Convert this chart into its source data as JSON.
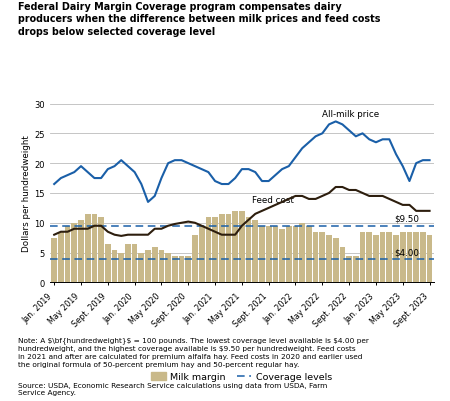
{
  "title": "Federal Dairy Margin Coverage program compensates dairy\nproducers when the difference between milk prices and feed costs\ndrops below selected coverage level",
  "ylabel": "Dollars per hundredweight",
  "coverage_low": 4.0,
  "coverage_high": 9.5,
  "bar_color": "#c9b98a",
  "feed_color": "#2d1e0e",
  "milk_color": "#1a5fa8",
  "coverage_color": "#1a5fa8",
  "tick_labels": [
    "Jan. 2019",
    "May 2019",
    "Sept. 2019",
    "Jan. 2020",
    "May 2020",
    "Sept. 2020",
    "Jan. 2021",
    "May 2021",
    "Sept. 2021",
    "Jan. 2022",
    "May 2022",
    "Sept. 2022",
    "Jan. 2023",
    "May 2023",
    "Sept. 2023"
  ],
  "milk_margin": [
    7.5,
    8.5,
    9.5,
    10.0,
    10.5,
    11.5,
    11.5,
    11.0,
    6.5,
    5.5,
    5.0,
    6.5,
    6.5,
    5.0,
    5.5,
    6.0,
    5.5,
    5.0,
    4.5,
    4.5,
    4.5,
    8.0,
    9.5,
    11.0,
    11.0,
    11.5,
    11.5,
    12.0,
    12.0,
    11.0,
    10.5,
    9.5,
    9.5,
    9.5,
    9.0,
    9.5,
    9.5,
    10.0,
    9.5,
    8.5,
    8.5,
    8.0,
    7.5,
    6.0,
    4.5,
    4.5,
    8.5,
    8.5,
    8.0,
    8.5,
    8.5,
    8.0,
    8.5,
    8.5,
    8.5,
    8.5,
    8.0
  ],
  "feed_cost": [
    8.0,
    8.5,
    8.5,
    9.0,
    9.0,
    9.0,
    9.5,
    9.5,
    8.5,
    8.0,
    7.8,
    8.0,
    8.0,
    8.0,
    8.0,
    9.0,
    9.0,
    9.5,
    9.8,
    10.0,
    10.2,
    10.0,
    9.5,
    9.0,
    8.5,
    8.0,
    8.0,
    8.0,
    9.5,
    10.5,
    11.5,
    12.0,
    12.5,
    13.0,
    13.5,
    14.0,
    14.5,
    14.5,
    14.0,
    14.0,
    14.5,
    15.0,
    16.0,
    16.0,
    15.5,
    15.5,
    15.0,
    14.5,
    14.5,
    14.5,
    14.0,
    13.5,
    13.0,
    13.0,
    12.0,
    12.0,
    12.0
  ],
  "all_milk_price": [
    16.5,
    17.5,
    18.0,
    18.5,
    19.5,
    18.5,
    17.5,
    17.5,
    19.0,
    19.5,
    20.5,
    19.5,
    18.5,
    16.5,
    13.5,
    14.5,
    17.5,
    20.0,
    20.5,
    20.5,
    20.0,
    19.5,
    19.0,
    18.5,
    17.0,
    16.5,
    16.5,
    17.5,
    19.0,
    19.0,
    18.5,
    17.0,
    17.0,
    18.0,
    19.0,
    19.5,
    21.0,
    22.5,
    23.5,
    24.5,
    25.0,
    26.5,
    27.0,
    26.5,
    25.5,
    24.5,
    25.0,
    24.0,
    23.5,
    24.0,
    24.0,
    21.5,
    19.5,
    17.0,
    20.0,
    20.5,
    20.5
  ],
  "ylim": [
    0,
    30
  ],
  "yticks": [
    0,
    5,
    10,
    15,
    20,
    25,
    30
  ],
  "n_months": 57
}
